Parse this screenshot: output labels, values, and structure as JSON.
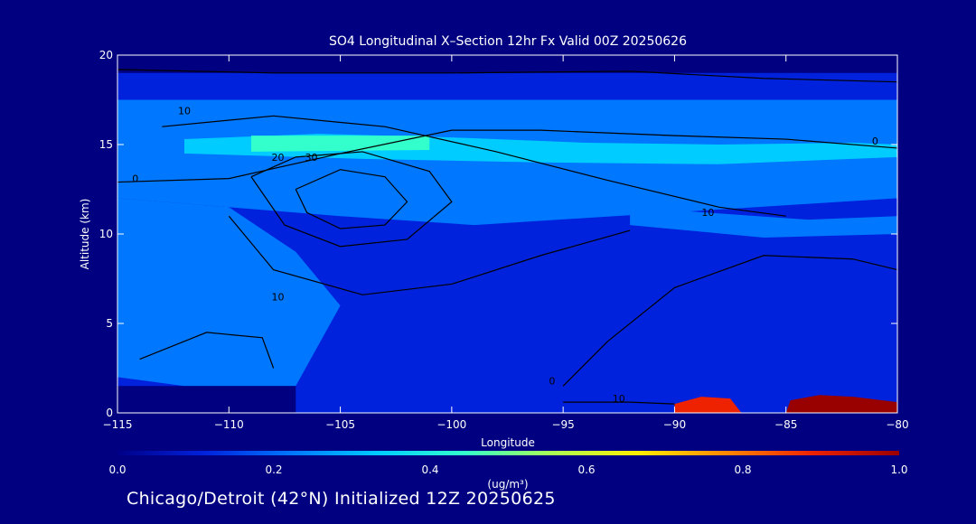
{
  "footer_text": "Chicago/Detroit (42°N) Initialized 12Z 20250625",
  "chart_data": {
    "type": "heatmap",
    "title": "SO4 Longitudinal X–Section 12hr  Fx Valid 00Z 20250626",
    "xlabel": "Longitude",
    "ylabel": "Altitude (km)",
    "xlim": [
      -115,
      -80
    ],
    "ylim": [
      0,
      20
    ],
    "x_ticks": [
      {
        "value": -115,
        "label": "−115"
      },
      {
        "value": -110,
        "label": "−110"
      },
      {
        "value": -105,
        "label": "−105"
      },
      {
        "value": -100,
        "label": "−100"
      },
      {
        "value": -95,
        "label": "−95"
      },
      {
        "value": -90,
        "label": "−90"
      },
      {
        "value": -85,
        "label": "−85"
      },
      {
        "value": -80,
        "label": "−80"
      }
    ],
    "y_ticks": [
      {
        "value": 0,
        "label": "0"
      },
      {
        "value": 5,
        "label": "5"
      },
      {
        "value": 10,
        "label": "10"
      },
      {
        "value": 15,
        "label": "15"
      },
      {
        "value": 20,
        "label": "20"
      }
    ],
    "colorbar": {
      "min": 0.0,
      "max": 1.0,
      "units": "(ug/m³)",
      "ticks": [
        {
          "value": 0.0,
          "label": "0.0"
        },
        {
          "value": 0.2,
          "label": "0.2"
        },
        {
          "value": 0.4,
          "label": "0.4"
        },
        {
          "value": 0.6,
          "label": "0.6"
        },
        {
          "value": 0.8,
          "label": "0.8"
        },
        {
          "value": 1.0,
          "label": "1.0"
        }
      ],
      "colors": [
        "#000088",
        "#0022dd",
        "#0077ff",
        "#00ccff",
        "#33ffcc",
        "#aaff55",
        "#ffee00",
        "#ff8800",
        "#ee2200",
        "#990000"
      ]
    },
    "fill_bands": [
      {
        "name": "background",
        "value": 0.14,
        "points": [
          [
            -115,
            0
          ],
          [
            -80,
            0
          ],
          [
            -80,
            19
          ],
          [
            -115,
            19
          ]
        ]
      },
      {
        "name": "upper-layer",
        "value": 0.25,
        "points": [
          [
            -115,
            17.5
          ],
          [
            -80,
            17.5
          ],
          [
            -80,
            12
          ],
          [
            -99,
            10.5
          ],
          [
            -105,
            11
          ],
          [
            -110,
            11.5
          ],
          [
            -115,
            12
          ]
        ]
      },
      {
        "name": "west-mid",
        "value": 0.22,
        "points": [
          [
            -115,
            12
          ],
          [
            -110,
            11.5
          ],
          [
            -107,
            9
          ],
          [
            -105,
            6
          ],
          [
            -107,
            1.5
          ],
          [
            -112,
            1.5
          ],
          [
            -115,
            2
          ]
        ]
      },
      {
        "name": "high-band",
        "value": 0.34,
        "points": [
          [
            -112,
            15.3
          ],
          [
            -106,
            15.6
          ],
          [
            -100,
            15.4
          ],
          [
            -94,
            15.1
          ],
          [
            -88,
            15.0
          ],
          [
            -82,
            15.1
          ],
          [
            -80,
            15.0
          ],
          [
            -80,
            14.3
          ],
          [
            -88,
            13.9
          ],
          [
            -96,
            14.0
          ],
          [
            -104,
            14.2
          ],
          [
            -112,
            14.5
          ]
        ]
      },
      {
        "name": "high-peak",
        "value": 0.45,
        "points": [
          [
            -109,
            15.5
          ],
          [
            -101,
            15.5
          ],
          [
            -101,
            14.7
          ],
          [
            -109,
            14.6
          ]
        ]
      },
      {
        "name": "east-layer",
        "value": 0.27,
        "points": [
          [
            -92,
            11.5
          ],
          [
            -84,
            10.8
          ],
          [
            -80,
            11
          ],
          [
            -80,
            10
          ],
          [
            -86,
            9.8
          ],
          [
            -92,
            10.5
          ]
        ]
      },
      {
        "name": "surface-plume-1",
        "value": 0.85,
        "points": [
          [
            -90,
            0
          ],
          [
            -90,
            0.5
          ],
          [
            -88.8,
            0.9
          ],
          [
            -87.5,
            0.8
          ],
          [
            -87,
            0
          ]
        ]
      },
      {
        "name": "surface-plume-2",
        "value": 0.9,
        "points": [
          [
            -85,
            0
          ],
          [
            -84.8,
            0.7
          ],
          [
            -83.5,
            1.0
          ],
          [
            -82,
            0.9
          ],
          [
            -80,
            0.6
          ],
          [
            -80,
            0
          ]
        ]
      }
    ],
    "terrain_top_km": 1.5,
    "contours": [
      {
        "level": 0,
        "points": [
          [
            -115,
            19.2
          ],
          [
            -108,
            19
          ],
          [
            -100,
            19
          ],
          [
            -92,
            19.1
          ],
          [
            -86,
            18.7
          ],
          [
            -80,
            18.5
          ]
        ]
      },
      {
        "level": 0,
        "points": [
          [
            -115,
            12.9
          ],
          [
            -110,
            13.1
          ],
          [
            -105,
            14.5
          ],
          [
            -100,
            15.8
          ],
          [
            -96,
            15.8
          ],
          [
            -90,
            15.5
          ],
          [
            -85,
            15.3
          ],
          [
            -80,
            14.8
          ]
        ]
      },
      {
        "level": 10,
        "points": [
          [
            -113,
            16
          ],
          [
            -108,
            16.6
          ],
          [
            -103,
            16
          ],
          [
            -98,
            14.6
          ],
          [
            -93,
            13
          ],
          [
            -88,
            11.5
          ],
          [
            -85,
            11
          ]
        ]
      },
      {
        "level": 20,
        "points": [
          [
            -109,
            13.2
          ],
          [
            -107,
            14.3
          ],
          [
            -104,
            14.6
          ],
          [
            -101,
            13.5
          ],
          [
            -100,
            11.8
          ],
          [
            -102,
            9.7
          ],
          [
            -105,
            9.3
          ],
          [
            -107.5,
            10.5
          ],
          [
            -109,
            13.2
          ]
        ]
      },
      {
        "level": 30,
        "points": [
          [
            -107,
            12.5
          ],
          [
            -105,
            13.6
          ],
          [
            -103,
            13.2
          ],
          [
            -102,
            11.8
          ],
          [
            -103,
            10.5
          ],
          [
            -105,
            10.3
          ],
          [
            -106.5,
            11.2
          ],
          [
            -107,
            12.5
          ]
        ]
      },
      {
        "level": 10,
        "points": [
          [
            -110,
            11
          ],
          [
            -108,
            8
          ],
          [
            -104,
            6.6
          ],
          [
            -100,
            7.2
          ],
          [
            -96,
            8.8
          ],
          [
            -92,
            10.2
          ]
        ]
      },
      {
        "level": 0,
        "points": [
          [
            -114,
            3
          ],
          [
            -111,
            4.5
          ],
          [
            -108.5,
            4.2
          ],
          [
            -108,
            2.5
          ]
        ]
      },
      {
        "level": 0,
        "points": [
          [
            -95,
            1.5
          ],
          [
            -93,
            4
          ],
          [
            -90,
            7
          ],
          [
            -86,
            8.8
          ],
          [
            -82,
            8.6
          ],
          [
            -80,
            8
          ]
        ]
      },
      {
        "level": 10,
        "points": [
          [
            -95,
            0.6
          ],
          [
            -92,
            0.6
          ],
          [
            -90,
            0.5
          ]
        ]
      }
    ],
    "contour_labels": [
      {
        "text": "10",
        "x": -112,
        "y": 16.7
      },
      {
        "text": "20",
        "x": -107.8,
        "y": 14.1
      },
      {
        "text": "30",
        "x": -106.3,
        "y": 14.1
      },
      {
        "text": "0",
        "x": -114.2,
        "y": 12.9
      },
      {
        "text": "0",
        "x": -81,
        "y": 15.0
      },
      {
        "text": "10",
        "x": -88.5,
        "y": 11.0
      },
      {
        "text": "10",
        "x": -107.8,
        "y": 6.3
      },
      {
        "text": "0",
        "x": -95.5,
        "y": 1.6
      },
      {
        "text": "10",
        "x": -92.5,
        "y": 0.6
      }
    ]
  }
}
